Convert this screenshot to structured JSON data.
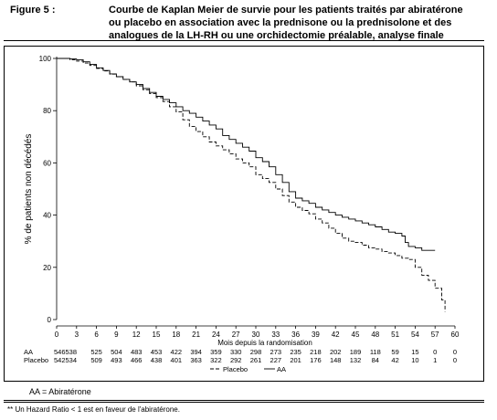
{
  "figure": {
    "label": "Figure 5 :",
    "title": "Courbe de Kaplan Meier de survie pour les patients traités par abiratérone ou placebo en association avec la prednisone ou la prednisolone et des analogues de la LH-RH ou une orchidectomie préalable, analyse finale"
  },
  "chart_data": {
    "type": "line",
    "xlabel": "Mois depuis la randomisation",
    "ylabel": "% de patients non décédés",
    "xlim": [
      0,
      60
    ],
    "ylim": [
      0,
      100
    ],
    "x_ticks": [
      0,
      3,
      6,
      9,
      12,
      15,
      18,
      21,
      24,
      27,
      30,
      33,
      36,
      39,
      42,
      45,
      48,
      51,
      54,
      57,
      60
    ],
    "y_ticks": [
      0,
      20,
      40,
      60,
      80,
      100
    ],
    "grid": false,
    "legend": {
      "position": "bottom",
      "entries": [
        "Placebo",
        "AA"
      ]
    },
    "series": [
      {
        "name": "AA",
        "style": "solid",
        "color": "#000000",
        "points": [
          [
            0,
            100
          ],
          [
            1,
            100
          ],
          [
            2,
            99.8
          ],
          [
            3,
            99.5
          ],
          [
            4,
            98.7
          ],
          [
            5,
            97.7
          ],
          [
            6,
            96.4
          ],
          [
            7,
            95.4
          ],
          [
            8,
            94.1
          ],
          [
            9,
            93
          ],
          [
            10,
            92
          ],
          [
            11,
            91
          ],
          [
            12,
            90
          ],
          [
            13,
            88.5
          ],
          [
            14,
            87
          ],
          [
            15,
            85.5
          ],
          [
            16,
            84.3
          ],
          [
            17,
            83
          ],
          [
            18,
            81.5
          ],
          [
            19,
            80
          ],
          [
            20,
            79
          ],
          [
            21,
            77.5
          ],
          [
            22,
            76
          ],
          [
            23,
            74.5
          ],
          [
            24,
            73
          ],
          [
            25,
            70.5
          ],
          [
            26,
            69
          ],
          [
            27,
            67.5
          ],
          [
            28,
            66
          ],
          [
            29,
            64.5
          ],
          [
            30,
            62
          ],
          [
            31,
            60.5
          ],
          [
            32,
            58.5
          ],
          [
            33,
            55.5
          ],
          [
            34,
            52.5
          ],
          [
            35,
            49
          ],
          [
            36,
            46.5
          ],
          [
            37,
            45.5
          ],
          [
            38,
            44.5
          ],
          [
            39,
            43
          ],
          [
            40,
            42
          ],
          [
            41,
            41
          ],
          [
            42,
            40
          ],
          [
            43,
            39.2
          ],
          [
            44,
            38.5
          ],
          [
            45,
            37.8
          ],
          [
            46,
            37
          ],
          [
            47,
            36.3
          ],
          [
            48,
            35.5
          ],
          [
            49,
            34.5
          ],
          [
            50,
            33.5
          ],
          [
            51,
            33
          ],
          [
            52,
            32
          ],
          [
            52.5,
            29.5
          ],
          [
            53,
            28
          ],
          [
            54,
            27.5
          ],
          [
            55,
            26.5
          ],
          [
            56,
            26.5
          ],
          [
            57,
            26.5
          ]
        ]
      },
      {
        "name": "Placebo",
        "style": "dashed",
        "color": "#000000",
        "points": [
          [
            0,
            100
          ],
          [
            1,
            100
          ],
          [
            2,
            99.5
          ],
          [
            3,
            99
          ],
          [
            4,
            98.2
          ],
          [
            5,
            97.3
          ],
          [
            6,
            96.2
          ],
          [
            7,
            95.2
          ],
          [
            8,
            94
          ],
          [
            9,
            93
          ],
          [
            10,
            92
          ],
          [
            11,
            91
          ],
          [
            12,
            89.5
          ],
          [
            13,
            88
          ],
          [
            14,
            86.5
          ],
          [
            15,
            85
          ],
          [
            16,
            83.5
          ],
          [
            17,
            81.5
          ],
          [
            18,
            79.5
          ],
          [
            19,
            76.5
          ],
          [
            20,
            74
          ],
          [
            21,
            72
          ],
          [
            22,
            70
          ],
          [
            23,
            68
          ],
          [
            24,
            66.5
          ],
          [
            25,
            65
          ],
          [
            26,
            63.5
          ],
          [
            27,
            61.5
          ],
          [
            28,
            60
          ],
          [
            29,
            58.5
          ],
          [
            30,
            55.5
          ],
          [
            31,
            54
          ],
          [
            32,
            52.5
          ],
          [
            33,
            50
          ],
          [
            34,
            47.5
          ],
          [
            35,
            45
          ],
          [
            36,
            43
          ],
          [
            37,
            41.8
          ],
          [
            38,
            40.5
          ],
          [
            39,
            38.5
          ],
          [
            40,
            37
          ],
          [
            41,
            35
          ],
          [
            42,
            33
          ],
          [
            43,
            31.2
          ],
          [
            44,
            30
          ],
          [
            45,
            29.5
          ],
          [
            46,
            28.5
          ],
          [
            47,
            27.5
          ],
          [
            48,
            27
          ],
          [
            49,
            26
          ],
          [
            50,
            25.5
          ],
          [
            51,
            24.5
          ],
          [
            52,
            23.5
          ],
          [
            53,
            23
          ],
          [
            54,
            20
          ],
          [
            55,
            17
          ],
          [
            56,
            15
          ],
          [
            57,
            12
          ],
          [
            58,
            7.5
          ],
          [
            58.5,
            3
          ]
        ]
      }
    ],
    "risk_table": {
      "rows": [
        {
          "label": "AA",
          "values": [
            "546538",
            "525",
            "504",
            "483",
            "453",
            "422",
            "394",
            "359",
            "330",
            "298",
            "273",
            "235",
            "218",
            "202",
            "189",
            "118",
            "59",
            "15",
            "0",
            "0"
          ]
        },
        {
          "label": "Placebo",
          "values": [
            "542534",
            "509",
            "493",
            "466",
            "438",
            "401",
            "363",
            "322",
            "292",
            "261",
            "227",
            "201",
            "176",
            "148",
            "132",
            "84",
            "42",
            "10",
            "1",
            "0"
          ]
        }
      ]
    }
  },
  "footnotes": {
    "abbreviation": "AA = Abiratérone",
    "hazard": "** Un Hazard Ratio < 1 est en faveur de l'abiratérone."
  }
}
